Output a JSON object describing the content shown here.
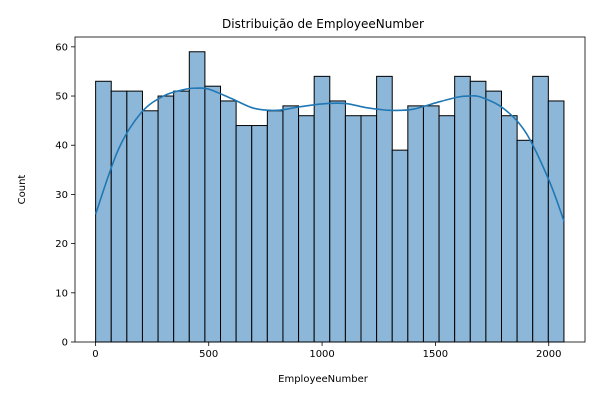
{
  "chart_data": {
    "type": "bar",
    "title": "Distribuição de EmployeeNumber",
    "xlabel": "EmployeeNumber",
    "ylabel": "Count",
    "xlim": [
      -90,
      2160
    ],
    "ylim": [
      0,
      62
    ],
    "x_ticks": [
      0,
      500,
      1000,
      1500,
      2000
    ],
    "y_ticks": [
      0,
      10,
      20,
      30,
      40,
      50,
      60
    ],
    "bin_start": 1,
    "bin_width": 68.87,
    "values": [
      53,
      51,
      51,
      47,
      50,
      51,
      59,
      52,
      49,
      44,
      44,
      47,
      48,
      46,
      54,
      49,
      46,
      46,
      54,
      39,
      48,
      48,
      46,
      54,
      53,
      51,
      46,
      41,
      54,
      49
    ],
    "kde": {
      "x": [
        1,
        100,
        200,
        300,
        400,
        450,
        500,
        600,
        700,
        800,
        900,
        1000,
        1100,
        1200,
        1300,
        1400,
        1500,
        1600,
        1650,
        1700,
        1800,
        1900,
        2000,
        2068
      ],
      "y": [
        26,
        39,
        46.5,
        50,
        51.4,
        51.6,
        51.4,
        49.5,
        47.5,
        47.1,
        47.8,
        48.4,
        48.5,
        47.6,
        47.1,
        47.3,
        48.6,
        49.8,
        50.0,
        49.8,
        47.5,
        42.5,
        33,
        24.5
      ]
    },
    "grid": false,
    "legend": "none",
    "colors": {
      "bar_fill": "#8db7d8",
      "bar_edge": "#000000",
      "kde_line": "#1f77b4"
    }
  }
}
